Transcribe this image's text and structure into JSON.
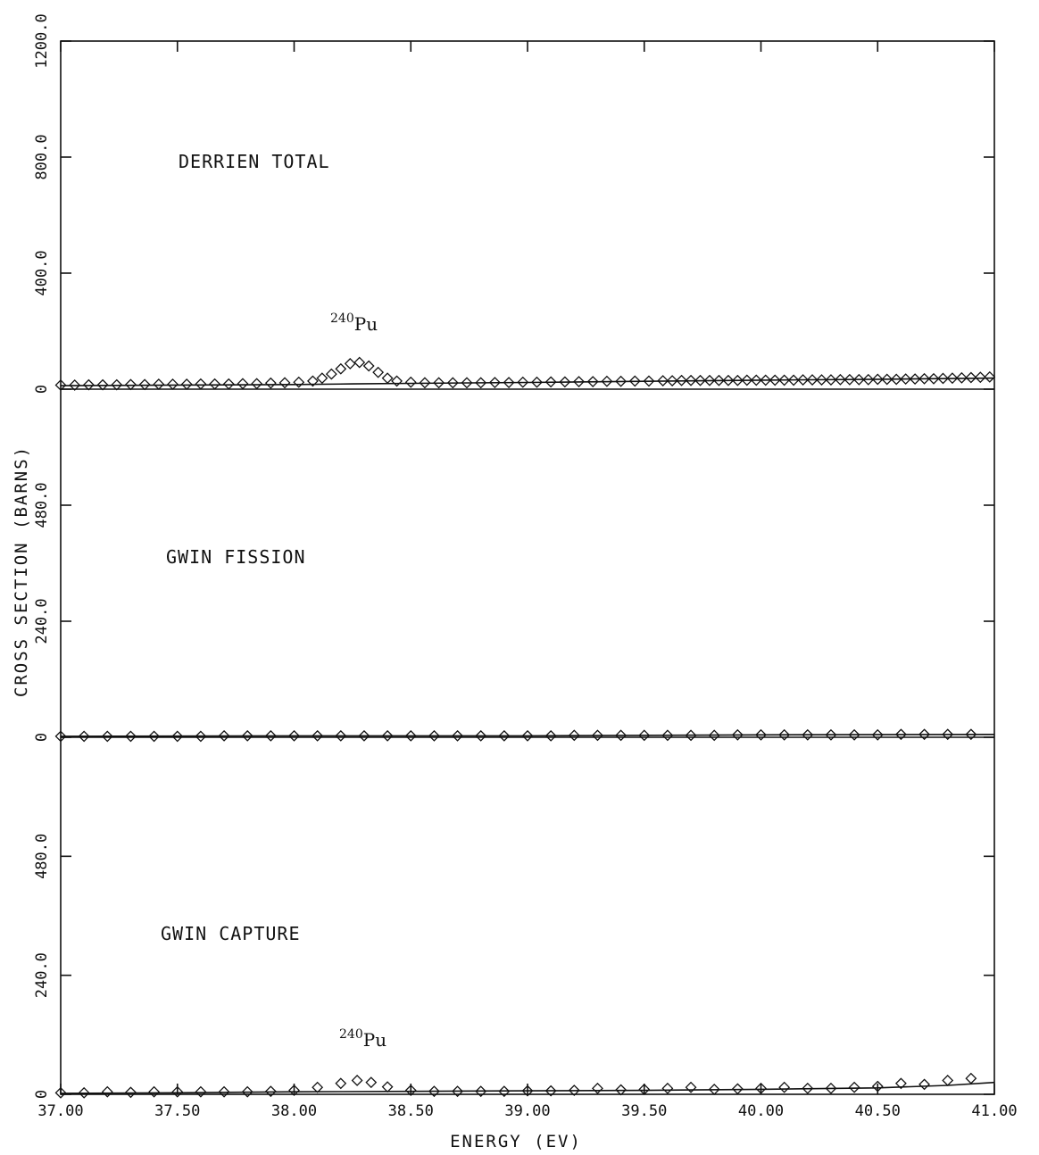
{
  "chart_data": {
    "type": "scatter",
    "xlabel": "ENERGY (EV)",
    "ylabel": "CROSS SECTION (BARNS)",
    "xlim": [
      37.0,
      41.0
    ],
    "x_tick_labels": [
      "37.00",
      "37.50",
      "38.00",
      "38.50",
      "39.00",
      "39.50",
      "40.00",
      "40.50",
      "41.00"
    ],
    "panels": [
      {
        "id": "total",
        "title": "DERRIEN TOTAL",
        "annotation": {
          "sup": "240",
          "base": "Pu"
        },
        "ylim": [
          0,
          1200
        ],
        "y_tick_labels": [
          "0",
          "400.0",
          "800.0",
          "1200.0"
        ],
        "points": [
          [
            37.0,
            14
          ],
          [
            37.06,
            14
          ],
          [
            37.12,
            15
          ],
          [
            37.18,
            15
          ],
          [
            37.24,
            15
          ],
          [
            37.3,
            16
          ],
          [
            37.36,
            16
          ],
          [
            37.42,
            17
          ],
          [
            37.48,
            17
          ],
          [
            37.54,
            17
          ],
          [
            37.6,
            18
          ],
          [
            37.66,
            18
          ],
          [
            37.72,
            18
          ],
          [
            37.78,
            19
          ],
          [
            37.84,
            19
          ],
          [
            37.9,
            21
          ],
          [
            37.96,
            22
          ],
          [
            38.02,
            24
          ],
          [
            38.08,
            28
          ],
          [
            38.12,
            38
          ],
          [
            38.16,
            52
          ],
          [
            38.2,
            70
          ],
          [
            38.24,
            88
          ],
          [
            38.28,
            92
          ],
          [
            38.32,
            80
          ],
          [
            38.36,
            58
          ],
          [
            38.4,
            38
          ],
          [
            38.44,
            28
          ],
          [
            38.5,
            24
          ],
          [
            38.56,
            22
          ],
          [
            38.62,
            22
          ],
          [
            38.68,
            22
          ],
          [
            38.74,
            22
          ],
          [
            38.8,
            22
          ],
          [
            38.86,
            23
          ],
          [
            38.92,
            23
          ],
          [
            38.98,
            24
          ],
          [
            39.04,
            24
          ],
          [
            39.1,
            25
          ],
          [
            39.16,
            25
          ],
          [
            39.22,
            26
          ],
          [
            39.28,
            26
          ],
          [
            39.34,
            27
          ],
          [
            39.4,
            27
          ],
          [
            39.46,
            28
          ],
          [
            39.52,
            28
          ],
          [
            39.58,
            29
          ],
          [
            39.62,
            29
          ],
          [
            39.66,
            30
          ],
          [
            39.7,
            30
          ],
          [
            39.74,
            30
          ],
          [
            39.78,
            30
          ],
          [
            39.82,
            30
          ],
          [
            39.86,
            30
          ],
          [
            39.9,
            30
          ],
          [
            39.94,
            31
          ],
          [
            39.98,
            31
          ],
          [
            40.02,
            31
          ],
          [
            40.06,
            31
          ],
          [
            40.1,
            31
          ],
          [
            40.14,
            31
          ],
          [
            40.18,
            32
          ],
          [
            40.22,
            32
          ],
          [
            40.26,
            32
          ],
          [
            40.3,
            32
          ],
          [
            40.34,
            33
          ],
          [
            40.38,
            33
          ],
          [
            40.42,
            33
          ],
          [
            40.46,
            33
          ],
          [
            40.5,
            34
          ],
          [
            40.54,
            34
          ],
          [
            40.58,
            34
          ],
          [
            40.62,
            35
          ],
          [
            40.66,
            35
          ],
          [
            40.7,
            36
          ],
          [
            40.74,
            36
          ],
          [
            40.78,
            37
          ],
          [
            40.82,
            38
          ],
          [
            40.86,
            39
          ],
          [
            40.9,
            40
          ],
          [
            40.94,
            41
          ],
          [
            40.98,
            42
          ]
        ],
        "curve": [
          [
            37.0,
            12
          ],
          [
            37.5,
            14
          ],
          [
            38.0,
            16
          ],
          [
            38.25,
            18
          ],
          [
            38.5,
            20
          ],
          [
            39.0,
            23
          ],
          [
            39.5,
            27
          ],
          [
            40.0,
            31
          ],
          [
            40.5,
            34
          ],
          [
            41.0,
            38
          ]
        ]
      },
      {
        "id": "fission",
        "title": "GWIN FISSION",
        "ylim": [
          0,
          720
        ],
        "y_tick_labels": [
          "0",
          "240.0",
          "480.0"
        ],
        "points": [
          [
            37.0,
            2
          ],
          [
            37.1,
            2
          ],
          [
            37.2,
            2
          ],
          [
            37.3,
            2
          ],
          [
            37.4,
            2
          ],
          [
            37.5,
            2
          ],
          [
            37.6,
            2
          ],
          [
            37.7,
            3
          ],
          [
            37.8,
            3
          ],
          [
            37.9,
            3
          ],
          [
            38.0,
            3
          ],
          [
            38.1,
            3
          ],
          [
            38.2,
            3
          ],
          [
            38.3,
            3
          ],
          [
            38.4,
            3
          ],
          [
            38.5,
            3
          ],
          [
            38.6,
            3
          ],
          [
            38.7,
            3
          ],
          [
            38.8,
            3
          ],
          [
            38.9,
            3
          ],
          [
            39.0,
            3
          ],
          [
            39.1,
            3
          ],
          [
            39.2,
            4
          ],
          [
            39.3,
            4
          ],
          [
            39.4,
            4
          ],
          [
            39.5,
            4
          ],
          [
            39.6,
            4
          ],
          [
            39.7,
            4
          ],
          [
            39.8,
            4
          ],
          [
            39.9,
            5
          ],
          [
            40.0,
            5
          ],
          [
            40.1,
            5
          ],
          [
            40.2,
            5
          ],
          [
            40.3,
            5
          ],
          [
            40.4,
            5
          ],
          [
            40.5,
            5
          ],
          [
            40.6,
            6
          ],
          [
            40.7,
            6
          ],
          [
            40.8,
            6
          ],
          [
            40.9,
            6
          ]
        ],
        "curve": [
          [
            37.0,
            2
          ],
          [
            38.0,
            3
          ],
          [
            39.0,
            3
          ],
          [
            40.0,
            5
          ],
          [
            41.0,
            6
          ]
        ]
      },
      {
        "id": "capture",
        "title": "GWIN CAPTURE",
        "annotation": {
          "sup": "240",
          "base": "Pu"
        },
        "ylim": [
          0,
          720
        ],
        "y_tick_labels": [
          "0",
          "240.0",
          "480.0"
        ],
        "points": [
          [
            37.0,
            3
          ],
          [
            37.1,
            3
          ],
          [
            37.2,
            5
          ],
          [
            37.3,
            4
          ],
          [
            37.4,
            5
          ],
          [
            37.5,
            5
          ],
          [
            37.6,
            5
          ],
          [
            37.7,
            5
          ],
          [
            37.8,
            5
          ],
          [
            37.9,
            6
          ],
          [
            38.0,
            8
          ],
          [
            38.1,
            14
          ],
          [
            38.2,
            22
          ],
          [
            38.27,
            28
          ],
          [
            38.33,
            24
          ],
          [
            38.4,
            15
          ],
          [
            38.5,
            8
          ],
          [
            38.6,
            6
          ],
          [
            38.7,
            6
          ],
          [
            38.8,
            6
          ],
          [
            38.9,
            6
          ],
          [
            39.0,
            7
          ],
          [
            39.1,
            7
          ],
          [
            39.2,
            8
          ],
          [
            39.3,
            12
          ],
          [
            39.4,
            9
          ],
          [
            39.5,
            10
          ],
          [
            39.6,
            12
          ],
          [
            39.7,
            14
          ],
          [
            39.8,
            10
          ],
          [
            39.9,
            11
          ],
          [
            40.0,
            12
          ],
          [
            40.1,
            14
          ],
          [
            40.2,
            12
          ],
          [
            40.3,
            12
          ],
          [
            40.4,
            14
          ],
          [
            40.5,
            16
          ],
          [
            40.6,
            22
          ],
          [
            40.7,
            20
          ],
          [
            40.8,
            28
          ],
          [
            40.9,
            32
          ]
        ],
        "curve": [
          [
            37.0,
            2
          ],
          [
            37.5,
            3
          ],
          [
            38.0,
            5
          ],
          [
            38.5,
            6
          ],
          [
            39.0,
            7
          ],
          [
            39.5,
            8
          ],
          [
            40.0,
            10
          ],
          [
            40.5,
            13
          ],
          [
            40.8,
            18
          ],
          [
            41.0,
            24
          ]
        ]
      }
    ]
  }
}
